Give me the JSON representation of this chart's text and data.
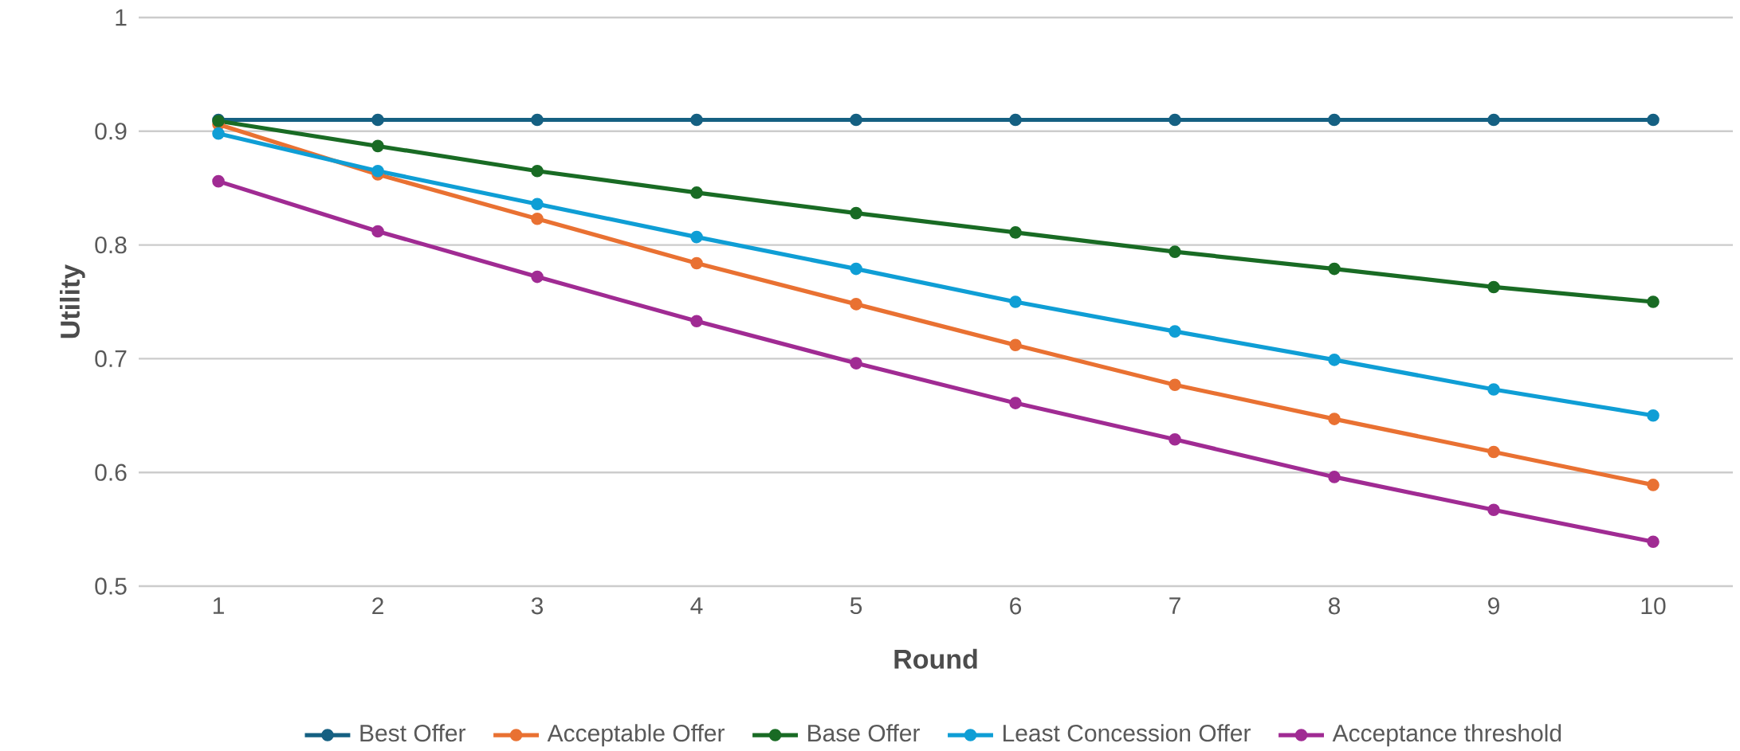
{
  "chart_data": {
    "type": "line",
    "xlabel": "Round",
    "ylabel": "Utility",
    "categories": [
      "1",
      "2",
      "3",
      "4",
      "5",
      "6",
      "7",
      "8",
      "9",
      "10"
    ],
    "ylim": [
      0.5,
      1
    ],
    "yticks": [
      0.5,
      0.6,
      0.7,
      0.8,
      0.9,
      1
    ],
    "grid": "y",
    "legend": "bottom",
    "marker": "circle",
    "line_style": "solid",
    "series": [
      {
        "name": "Best Offer",
        "color": "#156082",
        "values": [
          0.91,
          0.91,
          0.91,
          0.91,
          0.91,
          0.91,
          0.91,
          0.91,
          0.91,
          0.91
        ]
      },
      {
        "name": "Acceptable Offer",
        "color": "#e97132",
        "values": [
          0.906,
          0.862,
          0.823,
          0.784,
          0.748,
          0.712,
          0.677,
          0.647,
          0.618,
          0.589
        ]
      },
      {
        "name": "Base Offer",
        "color": "#196b24",
        "values": [
          0.909,
          0.887,
          0.865,
          0.846,
          0.828,
          0.811,
          0.794,
          0.779,
          0.763,
          0.75
        ]
      },
      {
        "name": "Least Concession Offer",
        "color": "#0f9ed5",
        "values": [
          0.898,
          0.865,
          0.836,
          0.807,
          0.779,
          0.75,
          0.724,
          0.699,
          0.673,
          0.65
        ]
      },
      {
        "name": "Acceptance threshold",
        "color": "#a02b93",
        "values": [
          0.856,
          0.812,
          0.772,
          0.733,
          0.696,
          0.661,
          0.629,
          0.596,
          0.567,
          0.539
        ]
      }
    ]
  }
}
